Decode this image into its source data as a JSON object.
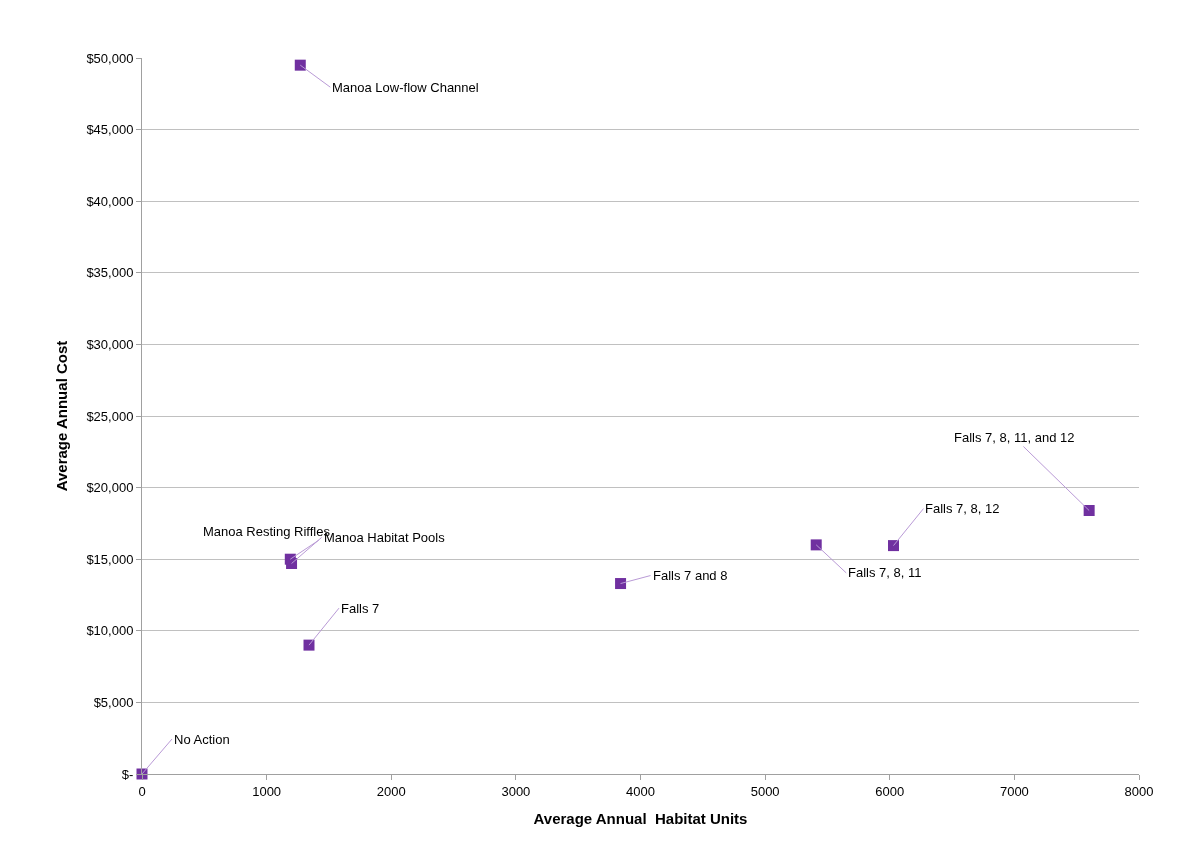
{
  "chart_data": {
    "type": "scatter",
    "xlabel": "Average Annual  Habitat Units",
    "ylabel": "Average Annual Cost",
    "x": [
      0,
      1270,
      1190,
      1200,
      1340,
      3840,
      5410,
      6030,
      7600
    ],
    "series": [
      {
        "color": "#7030a0",
        "values": [
          0,
          49500,
          15000,
          14700,
          9000,
          13300,
          16000,
          15950,
          18400
        ]
      }
    ],
    "xlim": [
      0,
      8000
    ],
    "xticks": [
      0,
      1000,
      2000,
      3000,
      4000,
      5000,
      6000,
      7000,
      8000
    ],
    "ylim": [
      0,
      50000
    ],
    "yticks": [
      {
        "value": 0,
        "label": "$-"
      },
      {
        "value": 5000,
        "label": "$5,000"
      },
      {
        "value": 10000,
        "label": "$10,000"
      },
      {
        "value": 15000,
        "label": "$15,000"
      },
      {
        "value": 20000,
        "label": "$20,000"
      },
      {
        "value": 25000,
        "label": "$25,000"
      },
      {
        "value": 30000,
        "label": "$30,000"
      },
      {
        "value": 35000,
        "label": "$35,000"
      },
      {
        "value": 40000,
        "label": "$40,000"
      },
      {
        "value": 45000,
        "label": "$45,000"
      },
      {
        "value": 50000,
        "label": "$50,000"
      }
    ],
    "annotations": [
      {
        "text": "No Action",
        "x": 0,
        "y": 0
      },
      {
        "text": "Manoa Low-flow Channel",
        "x": 1270,
        "y": 49500
      },
      {
        "text": "Manoa Resting Riffles",
        "x": 1190,
        "y": 15000
      },
      {
        "text": "Manoa Habitat Pools",
        "x": 1200,
        "y": 14700
      },
      {
        "text": "Falls 7",
        "x": 1340,
        "y": 9000
      },
      {
        "text": "Falls 7 and 8",
        "x": 3840,
        "y": 13300
      },
      {
        "text": "Falls 7, 8, 11",
        "x": 5410,
        "y": 16000
      },
      {
        "text": "Falls 7, 8, 12",
        "x": 6030,
        "y": 15950
      },
      {
        "text": "Falls 7, 8, 11, and 12",
        "x": 7600,
        "y": 18400
      }
    ],
    "grid": "y",
    "marker": "square"
  }
}
